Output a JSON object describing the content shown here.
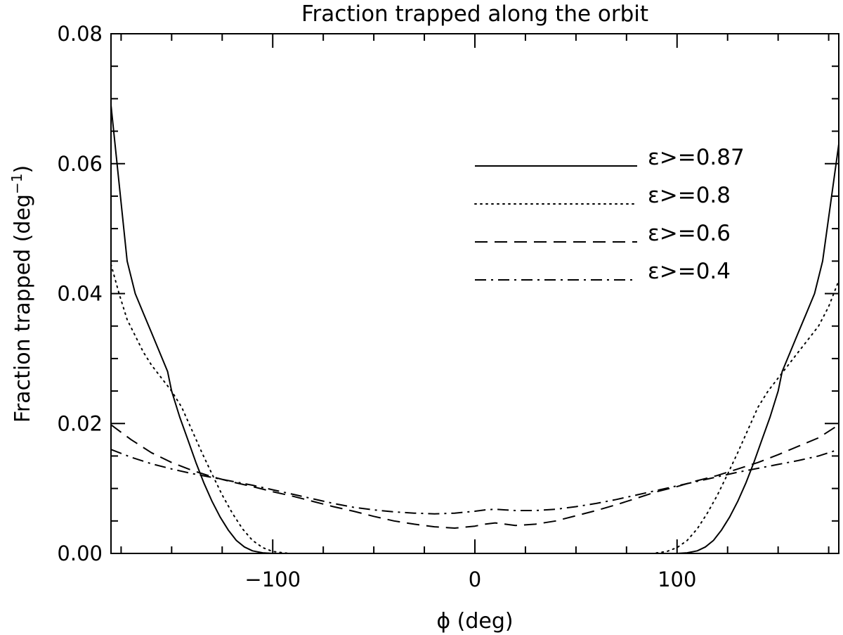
{
  "chart_data": {
    "type": "line",
    "title": "Fraction trapped along the orbit",
    "xlabel": "ϕ (deg)",
    "ylabel_main": "Fraction trapped (deg",
    "ylabel_sup": "−1",
    "ylabel_end": ")",
    "xlim": [
      -180,
      180
    ],
    "ylim": [
      0,
      0.08
    ],
    "xticks": [
      -100,
      0,
      100
    ],
    "xtick_labels": [
      "−100",
      "0",
      "100"
    ],
    "yticks": [
      0,
      0.02,
      0.04,
      0.06,
      0.08
    ],
    "ytick_labels": [
      "0.00",
      "0.02",
      "0.04",
      "0.06",
      "0.08"
    ],
    "legend_position": "upper-right",
    "grid": false,
    "series": [
      {
        "name": "ε>=0.87",
        "style": "solid",
        "points": [
          [
            -180,
            0.069
          ],
          [
            -176,
            0.057
          ],
          [
            -172,
            0.045
          ],
          [
            -168,
            0.04
          ],
          [
            -164,
            0.037
          ],
          [
            -160,
            0.034
          ],
          [
            -156,
            0.031
          ],
          [
            -152,
            0.028
          ],
          [
            -150,
            0.025
          ],
          [
            -146,
            0.021
          ],
          [
            -142,
            0.0175
          ],
          [
            -138,
            0.014
          ],
          [
            -134,
            0.0108
          ],
          [
            -130,
            0.008
          ],
          [
            -126,
            0.0056
          ],
          [
            -122,
            0.0036
          ],
          [
            -118,
            0.002
          ],
          [
            -114,
            0.001
          ],
          [
            -110,
            0.0004
          ],
          [
            -105,
            0.0001
          ],
          [
            -100,
            0.0
          ],
          [
            100,
            0.0
          ],
          [
            105,
            0.0001
          ],
          [
            110,
            0.0004
          ],
          [
            114,
            0.001
          ],
          [
            118,
            0.002
          ],
          [
            122,
            0.0036
          ],
          [
            126,
            0.0056
          ],
          [
            130,
            0.008
          ],
          [
            134,
            0.0108
          ],
          [
            138,
            0.014
          ],
          [
            142,
            0.0175
          ],
          [
            146,
            0.021
          ],
          [
            150,
            0.025
          ],
          [
            152,
            0.028
          ],
          [
            156,
            0.031
          ],
          [
            160,
            0.034
          ],
          [
            164,
            0.037
          ],
          [
            168,
            0.04
          ],
          [
            172,
            0.045
          ],
          [
            176,
            0.054
          ],
          [
            180,
            0.063
          ]
        ]
      },
      {
        "name": "ε>=0.8",
        "style": "dotted",
        "points": [
          [
            -180,
            0.0445
          ],
          [
            -176,
            0.04
          ],
          [
            -172,
            0.036
          ],
          [
            -168,
            0.0335
          ],
          [
            -164,
            0.031
          ],
          [
            -160,
            0.029
          ],
          [
            -155,
            0.027
          ],
          [
            -150,
            0.025
          ],
          [
            -145,
            0.0225
          ],
          [
            -140,
            0.019
          ],
          [
            -135,
            0.0155
          ],
          [
            -130,
            0.0122
          ],
          [
            -125,
            0.009
          ],
          [
            -120,
            0.0062
          ],
          [
            -115,
            0.0038
          ],
          [
            -110,
            0.002
          ],
          [
            -105,
            0.0009
          ],
          [
            -100,
            0.0003
          ],
          [
            -92,
            0.0
          ],
          [
            88,
            0.0
          ],
          [
            95,
            0.0003
          ],
          [
            100,
            0.0009
          ],
          [
            105,
            0.002
          ],
          [
            110,
            0.0038
          ],
          [
            115,
            0.0062
          ],
          [
            120,
            0.009
          ],
          [
            125,
            0.0122
          ],
          [
            130,
            0.0155
          ],
          [
            135,
            0.019
          ],
          [
            140,
            0.0225
          ],
          [
            145,
            0.025
          ],
          [
            150,
            0.027
          ],
          [
            155,
            0.029
          ],
          [
            160,
            0.031
          ],
          [
            165,
            0.033
          ],
          [
            170,
            0.035
          ],
          [
            175,
            0.038
          ],
          [
            180,
            0.042
          ]
        ]
      },
      {
        "name": "ε>=0.6",
        "style": "dashed",
        "points": [
          [
            -180,
            0.0198
          ],
          [
            -170,
            0.0175
          ],
          [
            -160,
            0.0155
          ],
          [
            -150,
            0.014
          ],
          [
            -140,
            0.0128
          ],
          [
            -130,
            0.0118
          ],
          [
            -120,
            0.011
          ],
          [
            -110,
            0.0103
          ],
          [
            -100,
            0.0095
          ],
          [
            -90,
            0.0088
          ],
          [
            -80,
            0.008
          ],
          [
            -70,
            0.0072
          ],
          [
            -60,
            0.0065
          ],
          [
            -50,
            0.0057
          ],
          [
            -40,
            0.005
          ],
          [
            -30,
            0.0045
          ],
          [
            -20,
            0.0041
          ],
          [
            -10,
            0.0039
          ],
          [
            0,
            0.0042
          ],
          [
            5,
            0.0045
          ],
          [
            10,
            0.0047
          ],
          [
            15,
            0.0045
          ],
          [
            20,
            0.0043
          ],
          [
            30,
            0.0045
          ],
          [
            40,
            0.005
          ],
          [
            50,
            0.0058
          ],
          [
            60,
            0.0066
          ],
          [
            70,
            0.0075
          ],
          [
            80,
            0.0085
          ],
          [
            90,
            0.0095
          ],
          [
            100,
            0.0103
          ],
          [
            110,
            0.0112
          ],
          [
            120,
            0.012
          ],
          [
            130,
            0.013
          ],
          [
            140,
            0.014
          ],
          [
            150,
            0.0152
          ],
          [
            160,
            0.0165
          ],
          [
            170,
            0.0178
          ],
          [
            180,
            0.0198
          ]
        ]
      },
      {
        "name": "ε>=0.4",
        "style": "dashdot",
        "points": [
          [
            -180,
            0.016
          ],
          [
            -170,
            0.0148
          ],
          [
            -160,
            0.0138
          ],
          [
            -150,
            0.013
          ],
          [
            -140,
            0.0123
          ],
          [
            -130,
            0.0117
          ],
          [
            -120,
            0.0111
          ],
          [
            -110,
            0.0105
          ],
          [
            -100,
            0.0098
          ],
          [
            -90,
            0.0091
          ],
          [
            -80,
            0.0084
          ],
          [
            -70,
            0.0077
          ],
          [
            -60,
            0.0071
          ],
          [
            -50,
            0.0067
          ],
          [
            -40,
            0.0064
          ],
          [
            -30,
            0.0062
          ],
          [
            -20,
            0.0061
          ],
          [
            -10,
            0.0062
          ],
          [
            0,
            0.0065
          ],
          [
            5,
            0.0067
          ],
          [
            10,
            0.0068
          ],
          [
            15,
            0.0067
          ],
          [
            20,
            0.0066
          ],
          [
            30,
            0.0066
          ],
          [
            40,
            0.0068
          ],
          [
            50,
            0.0072
          ],
          [
            60,
            0.0077
          ],
          [
            70,
            0.0083
          ],
          [
            80,
            0.009
          ],
          [
            90,
            0.0097
          ],
          [
            100,
            0.0104
          ],
          [
            110,
            0.0111
          ],
          [
            120,
            0.0118
          ],
          [
            130,
            0.0125
          ],
          [
            140,
            0.0131
          ],
          [
            150,
            0.0137
          ],
          [
            160,
            0.0143
          ],
          [
            170,
            0.015
          ],
          [
            180,
            0.016
          ]
        ]
      }
    ]
  }
}
